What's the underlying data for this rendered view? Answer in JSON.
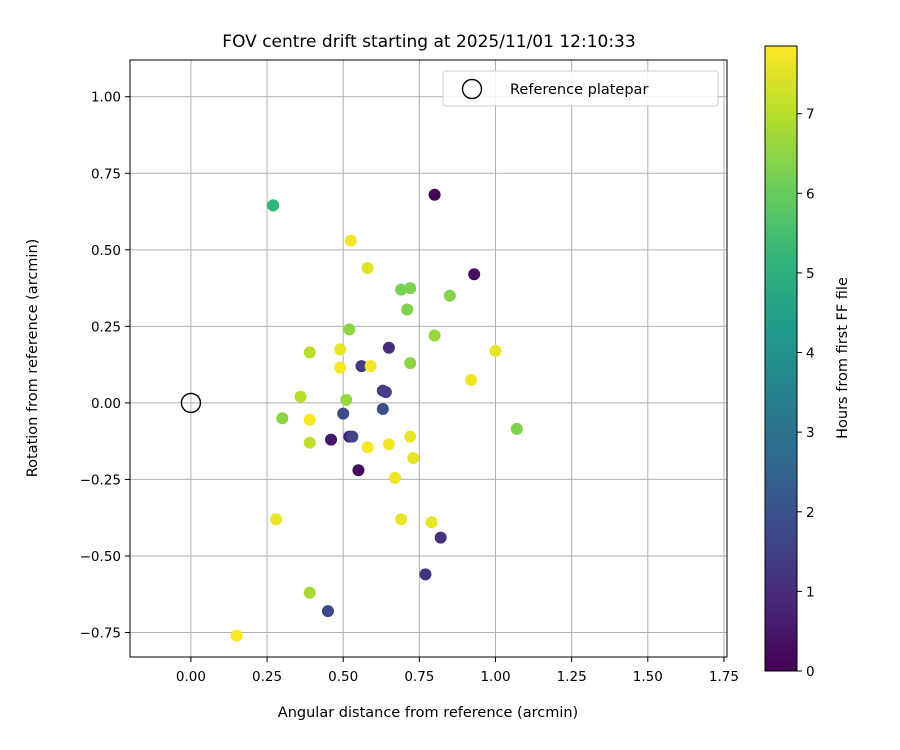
{
  "chart_data": {
    "type": "scatter",
    "title": "FOV centre drift starting at 2025/11/01 12:10:33",
    "xlabel": "Angular distance from reference (arcmin)",
    "ylabel": "Rotation from reference (arcmin)",
    "xlim": [
      -0.2,
      1.76
    ],
    "ylim": [
      -0.83,
      1.12
    ],
    "xticks": [
      0.0,
      0.25,
      0.5,
      0.75,
      1.0,
      1.25,
      1.5,
      1.75
    ],
    "xtick_labels": [
      "0.00",
      "0.25",
      "0.50",
      "0.75",
      "1.00",
      "1.25",
      "1.50",
      "1.75"
    ],
    "yticks": [
      -0.75,
      -0.5,
      -0.25,
      0.0,
      0.25,
      0.5,
      0.75,
      1.0
    ],
    "ytick_labels": [
      "−0.75",
      "−0.50",
      "−0.25",
      "0.00",
      "0.25",
      "0.50",
      "0.75",
      "1.00"
    ],
    "grid": true,
    "legend": {
      "position": "top-right",
      "entries": [
        "Reference platepar"
      ]
    },
    "reference_point": {
      "x": 0.0,
      "y": 0.0,
      "label": "Reference platepar"
    },
    "colorbar": {
      "label": "Hours from first FF file",
      "range": [
        0,
        7.85
      ],
      "ticks": [
        0,
        1,
        2,
        3,
        4,
        5,
        6,
        7
      ],
      "tick_labels": [
        "0",
        "1",
        "2",
        "3",
        "4",
        "5",
        "6",
        "7"
      ],
      "colormap": "viridis"
    },
    "colormap_stops": [
      "#440154",
      "#482878",
      "#3e4989",
      "#31688e",
      "#26828e",
      "#1f9e89",
      "#35b779",
      "#6ece58",
      "#b5de2b",
      "#fde725"
    ],
    "points": [
      {
        "x": 0.8,
        "y": 0.68,
        "c": 0.1
      },
      {
        "x": 0.93,
        "y": 0.42,
        "c": 0.3
      },
      {
        "x": 0.55,
        "y": -0.22,
        "c": 0.2
      },
      {
        "x": 0.46,
        "y": -0.12,
        "c": 0.5
      },
      {
        "x": 0.52,
        "y": -0.11,
        "c": 0.7
      },
      {
        "x": 0.65,
        "y": 0.18,
        "c": 1.0
      },
      {
        "x": 0.82,
        "y": -0.44,
        "c": 1.1
      },
      {
        "x": 0.77,
        "y": -0.56,
        "c": 1.2
      },
      {
        "x": 0.56,
        "y": 0.12,
        "c": 1.3
      },
      {
        "x": 0.63,
        "y": 0.04,
        "c": 1.4
      },
      {
        "x": 0.64,
        "y": 0.035,
        "c": 1.5
      },
      {
        "x": 0.53,
        "y": -0.11,
        "c": 1.6
      },
      {
        "x": 0.45,
        "y": -0.68,
        "c": 1.7
      },
      {
        "x": 0.5,
        "y": -0.035,
        "c": 1.8
      },
      {
        "x": 0.63,
        "y": -0.02,
        "c": 1.9
      },
      {
        "x": 0.27,
        "y": 0.645,
        "c": 5.0
      },
      {
        "x": 0.27,
        "y": 0.645,
        "c": 5.2
      },
      {
        "x": 0.69,
        "y": 0.37,
        "c": 6.2
      },
      {
        "x": 0.72,
        "y": 0.375,
        "c": 6.3
      },
      {
        "x": 0.85,
        "y": 0.35,
        "c": 6.4
      },
      {
        "x": 0.71,
        "y": 0.305,
        "c": 6.3
      },
      {
        "x": 0.52,
        "y": 0.24,
        "c": 6.5
      },
      {
        "x": 0.8,
        "y": 0.22,
        "c": 6.6
      },
      {
        "x": 0.72,
        "y": 0.13,
        "c": 6.5
      },
      {
        "x": 0.51,
        "y": 0.01,
        "c": 6.6
      },
      {
        "x": 1.07,
        "y": -0.085,
        "c": 6.3
      },
      {
        "x": 0.3,
        "y": -0.05,
        "c": 6.5
      },
      {
        "x": 0.39,
        "y": -0.62,
        "c": 6.8
      },
      {
        "x": 0.39,
        "y": 0.165,
        "c": 7.0
      },
      {
        "x": 0.36,
        "y": 0.02,
        "c": 7.0
      },
      {
        "x": 0.39,
        "y": -0.13,
        "c": 7.1
      },
      {
        "x": 0.525,
        "y": 0.53,
        "c": 7.7
      },
      {
        "x": 0.58,
        "y": 0.44,
        "c": 7.5
      },
      {
        "x": 1.0,
        "y": 0.17,
        "c": 7.6
      },
      {
        "x": 0.49,
        "y": 0.175,
        "c": 7.6
      },
      {
        "x": 0.59,
        "y": 0.12,
        "c": 7.7
      },
      {
        "x": 0.49,
        "y": 0.115,
        "c": 7.8
      },
      {
        "x": 0.92,
        "y": 0.075,
        "c": 7.7
      },
      {
        "x": 0.39,
        "y": -0.055,
        "c": 7.8
      },
      {
        "x": 0.72,
        "y": -0.11,
        "c": 7.6
      },
      {
        "x": 0.58,
        "y": -0.145,
        "c": 7.8
      },
      {
        "x": 0.65,
        "y": -0.135,
        "c": 7.7
      },
      {
        "x": 0.73,
        "y": -0.18,
        "c": 7.6
      },
      {
        "x": 0.67,
        "y": -0.245,
        "c": 7.7
      },
      {
        "x": 0.28,
        "y": -0.38,
        "c": 7.6
      },
      {
        "x": 0.69,
        "y": -0.38,
        "c": 7.6
      },
      {
        "x": 0.79,
        "y": -0.39,
        "c": 7.6
      },
      {
        "x": 0.15,
        "y": -0.76,
        "c": 7.8
      }
    ]
  }
}
